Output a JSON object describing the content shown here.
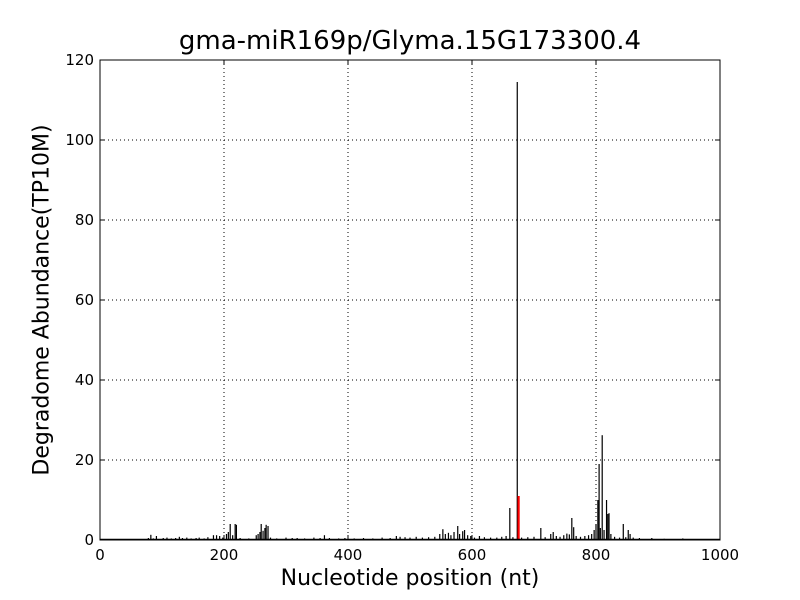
{
  "chart_data": {
    "type": "bar",
    "title": "gma-miR169p/Glyma.15G173300.4",
    "xlabel": "Nucleotide position (nt)",
    "ylabel": "Degradome Abundance(TP10M)",
    "xlim": [
      0,
      1000
    ],
    "ylim": [
      0,
      120
    ],
    "xticks": [
      "0",
      "200",
      "400",
      "600",
      "800",
      "1000"
    ],
    "yticks": [
      "0",
      "20",
      "40",
      "60",
      "80",
      "100",
      "120"
    ],
    "grid": true,
    "colors": {
      "main": "#000000",
      "highlight": "#ff0000"
    },
    "series": [
      {
        "color": "#000000",
        "points": [
          [
            78,
            0.5
          ],
          [
            82,
            1.3
          ],
          [
            86,
            0.4
          ],
          [
            91,
            1
          ],
          [
            102,
            0.5
          ],
          [
            108,
            0.6
          ],
          [
            115,
            0.4
          ],
          [
            122,
            0.5
          ],
          [
            128,
            0.8
          ],
          [
            133,
            0.5
          ],
          [
            140,
            0.6
          ],
          [
            147,
            0.4
          ],
          [
            155,
            0.5
          ],
          [
            160,
            0.6
          ],
          [
            168,
            0.4
          ],
          [
            174,
            0.7
          ],
          [
            183,
            1.2
          ],
          [
            188,
            1.2
          ],
          [
            193,
            1
          ],
          [
            198,
            0.6
          ],
          [
            204,
            1.5
          ],
          [
            207,
            2
          ],
          [
            210,
            4
          ],
          [
            214,
            1.2
          ],
          [
            218,
            4
          ],
          [
            220,
            3.8
          ],
          [
            226,
            0.5
          ],
          [
            240,
            0.4
          ],
          [
            252,
            1.2
          ],
          [
            255,
            1.5
          ],
          [
            258,
            2
          ],
          [
            260,
            4
          ],
          [
            263,
            2.3
          ],
          [
            266,
            3
          ],
          [
            268,
            3.8
          ],
          [
            271,
            3.5
          ],
          [
            275,
            0.6
          ],
          [
            285,
            0.4
          ],
          [
            300,
            0.6
          ],
          [
            310,
            0.5
          ],
          [
            318,
            0.5
          ],
          [
            330,
            0.4
          ],
          [
            345,
            0.6
          ],
          [
            355,
            0.5
          ],
          [
            362,
            1.2
          ],
          [
            370,
            0.5
          ],
          [
            385,
            0.4
          ],
          [
            395,
            0.5
          ],
          [
            410,
            0.4
          ],
          [
            425,
            0.5
          ],
          [
            440,
            0.4
          ],
          [
            455,
            0.6
          ],
          [
            468,
            0.5
          ],
          [
            478,
            1
          ],
          [
            484,
            0.8
          ],
          [
            492,
            0.7
          ],
          [
            500,
            0.6
          ],
          [
            510,
            0.8
          ],
          [
            520,
            0.6
          ],
          [
            530,
            0.7
          ],
          [
            540,
            0.8
          ],
          [
            548,
            1.5
          ],
          [
            553,
            2.7
          ],
          [
            557,
            1.5
          ],
          [
            562,
            1.8
          ],
          [
            566,
            1.2
          ],
          [
            571,
            2
          ],
          [
            577,
            3.5
          ],
          [
            580,
            1.5
          ],
          [
            585,
            2.2
          ],
          [
            588,
            2.5
          ],
          [
            593,
            1.2
          ],
          [
            598,
            1
          ],
          [
            604,
            0.6
          ],
          [
            612,
            1
          ],
          [
            620,
            0.7
          ],
          [
            630,
            0.6
          ],
          [
            640,
            0.6
          ],
          [
            648,
            0.8
          ],
          [
            655,
            1
          ],
          [
            661,
            8
          ],
          [
            666,
            0.7
          ],
          [
            673,
            114.5
          ],
          [
            680,
            0.6
          ],
          [
            690,
            0.7
          ],
          [
            700,
            0.8
          ],
          [
            711,
            3
          ],
          [
            718,
            0.7
          ],
          [
            727,
            1.5
          ],
          [
            731,
            2
          ],
          [
            736,
            1
          ],
          [
            742,
            0.8
          ],
          [
            748,
            1.2
          ],
          [
            753,
            1.6
          ],
          [
            757,
            1.4
          ],
          [
            761,
            5.5
          ],
          [
            764,
            3.2
          ],
          [
            768,
            1
          ],
          [
            775,
            0.8
          ],
          [
            782,
            1
          ],
          [
            788,
            1.2
          ],
          [
            793,
            1.5
          ],
          [
            797,
            2.5
          ],
          [
            800,
            4
          ],
          [
            803,
            10
          ],
          [
            805,
            19
          ],
          [
            807,
            3
          ],
          [
            810,
            26.2
          ],
          [
            813,
            2.5
          ],
          [
            817,
            10
          ],
          [
            819,
            6.5
          ],
          [
            821,
            6.7
          ],
          [
            824,
            1.5
          ],
          [
            830,
            0.8
          ],
          [
            838,
            0.6
          ],
          [
            844,
            4
          ],
          [
            848,
            0.7
          ],
          [
            852,
            2.5
          ],
          [
            855,
            1.5
          ],
          [
            860,
            0.6
          ],
          [
            870,
            0.5
          ],
          [
            890,
            0.5
          ],
          [
            910,
            0.3
          ],
          [
            940,
            0.4
          ]
        ]
      },
      {
        "color": "#ff0000",
        "points": [
          [
            675,
            11
          ]
        ]
      }
    ]
  }
}
